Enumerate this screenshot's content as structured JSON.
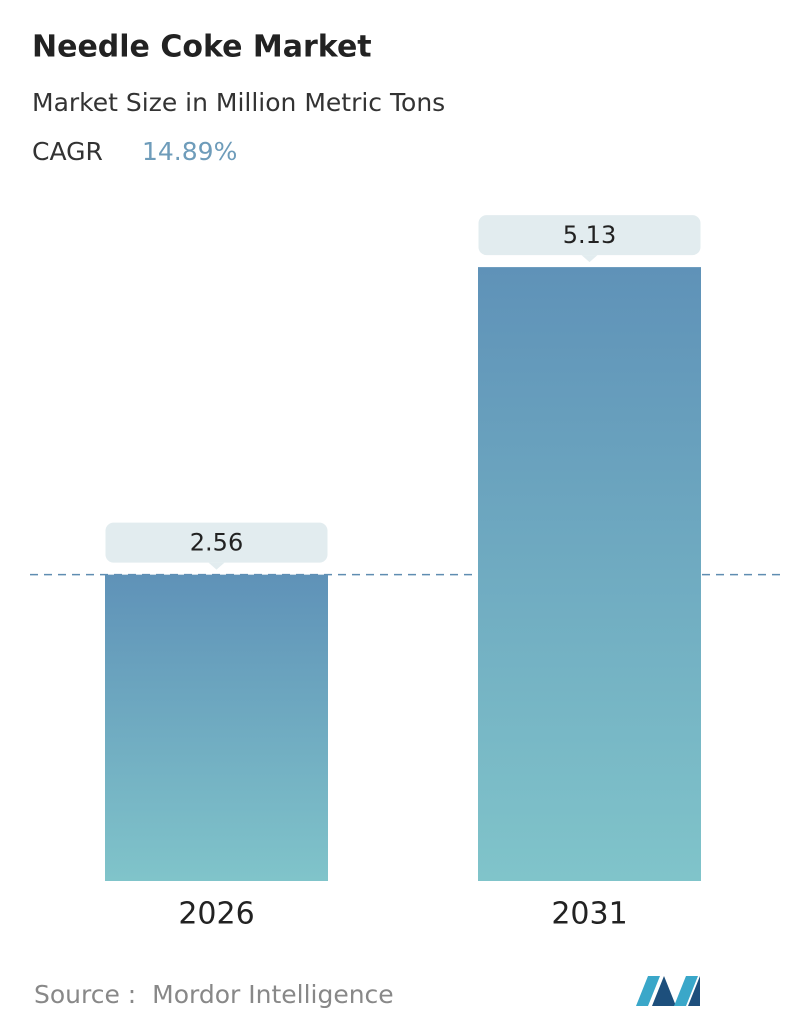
{
  "chart_data": {
    "type": "bar",
    "title": "Needle Coke Market",
    "subtitle": "Market Size in Million Metric Tons",
    "cagr_label": "CAGR",
    "cagr": "14.89%",
    "categories": [
      "2026",
      "2031"
    ],
    "values": [
      2.56,
      5.13
    ],
    "gradient": [
      "#5f92b8",
      "#80c4ca"
    ],
    "ylim": [
      0,
      6
    ],
    "source": "Source :  Mordor Intelligence"
  }
}
